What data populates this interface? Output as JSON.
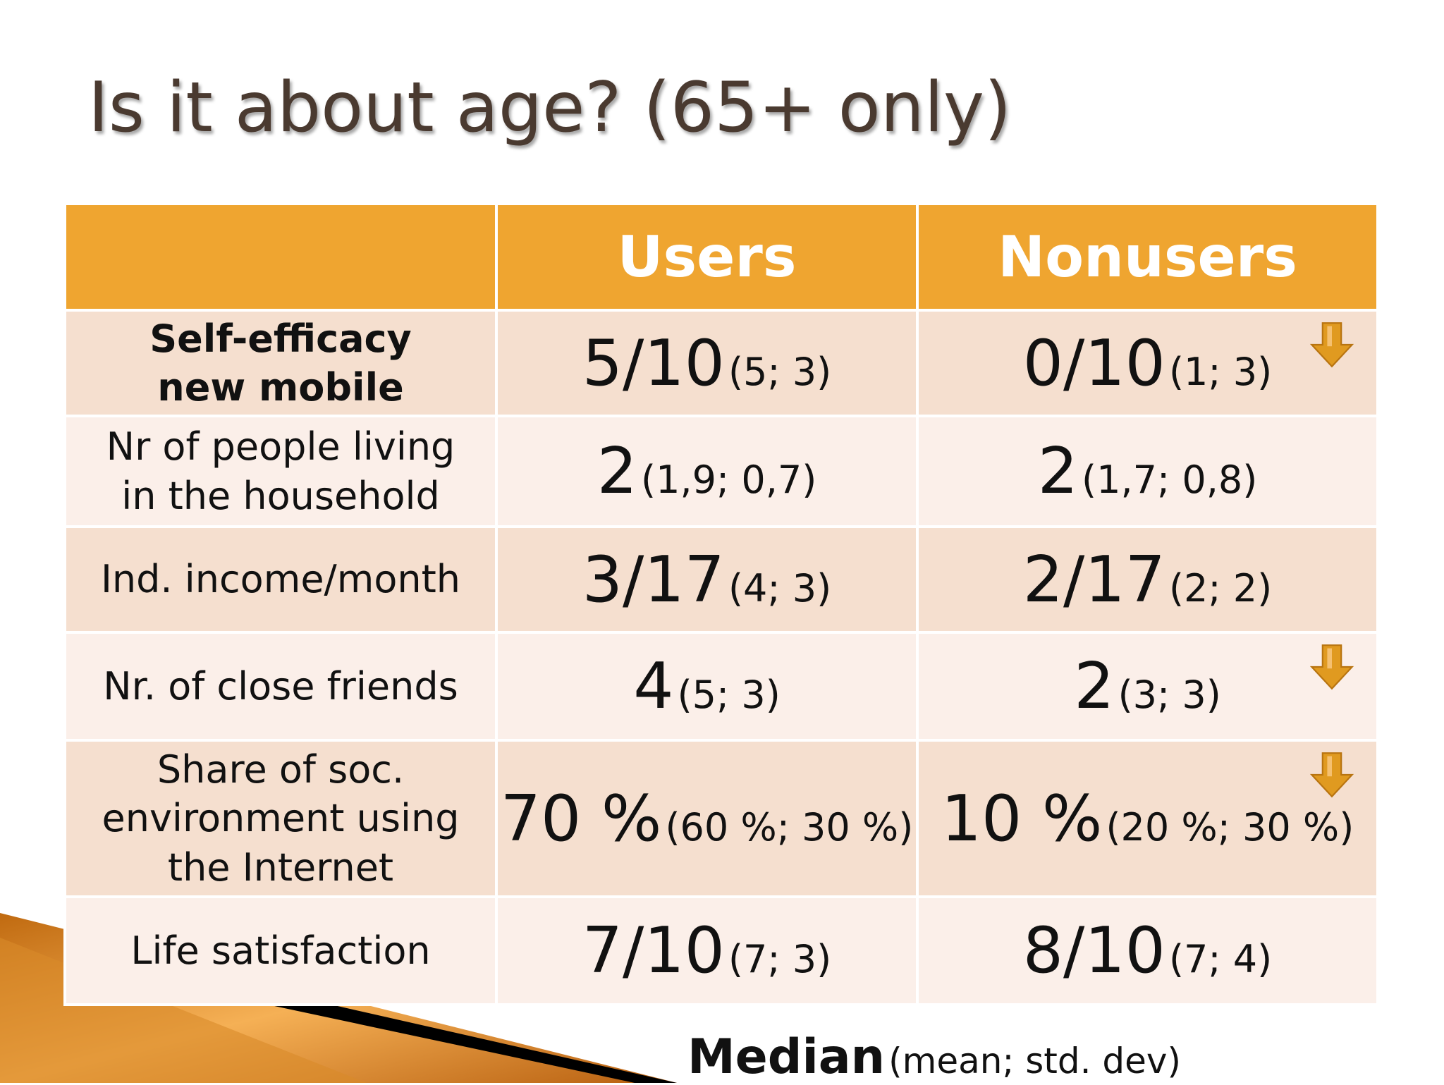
{
  "slide": {
    "title": "Is it about age? (65+ only)"
  },
  "table": {
    "headers": [
      "",
      "Users",
      "Nonusers"
    ],
    "rows": [
      {
        "label": "Self-efficacy new mobile",
        "users_main": "5/10",
        "users_sub": "(5; 3)",
        "nonusers_main": "0/10",
        "nonusers_sub": "(1; 3)"
      },
      {
        "label": "Nr of people living in the household",
        "users_main": "2",
        "users_sub": "(1,9; 0,7)",
        "nonusers_main": "2",
        "nonusers_sub": "(1,7; 0,8)"
      },
      {
        "label": "Ind. income/month",
        "users_main": "3/17",
        "users_sub": "(4; 3)",
        "nonusers_main": "2/17",
        "nonusers_sub": "(2; 2)"
      },
      {
        "label": "Nr. of close friends",
        "users_main": "4",
        "users_sub": "(5; 3)",
        "nonusers_main": "2",
        "nonusers_sub": "(3; 3)"
      },
      {
        "label": "Share of soc. environment using the Internet",
        "users_main": "70 %",
        "users_sub": "(60 %; 30 %)",
        "nonusers_main": "10 %",
        "nonusers_sub": "(20 %; 30 %)"
      },
      {
        "label": "Life satisfaction",
        "users_main": "7/10",
        "users_sub": "(7; 3)",
        "nonusers_main": "8/10",
        "nonusers_sub": "(7; 4)"
      }
    ]
  },
  "footer": {
    "emphasis": "Median",
    "detail": "(mean; std. dev)"
  },
  "icons": [
    "bullet-arrow-icon",
    "down-arrow-icon"
  ],
  "colors": {
    "header_bg": "#efa530",
    "row_dark": "#f5dfcf",
    "row_light": "#fbefe9",
    "arrow": "#e09a20",
    "title": "#4a3a30"
  }
}
